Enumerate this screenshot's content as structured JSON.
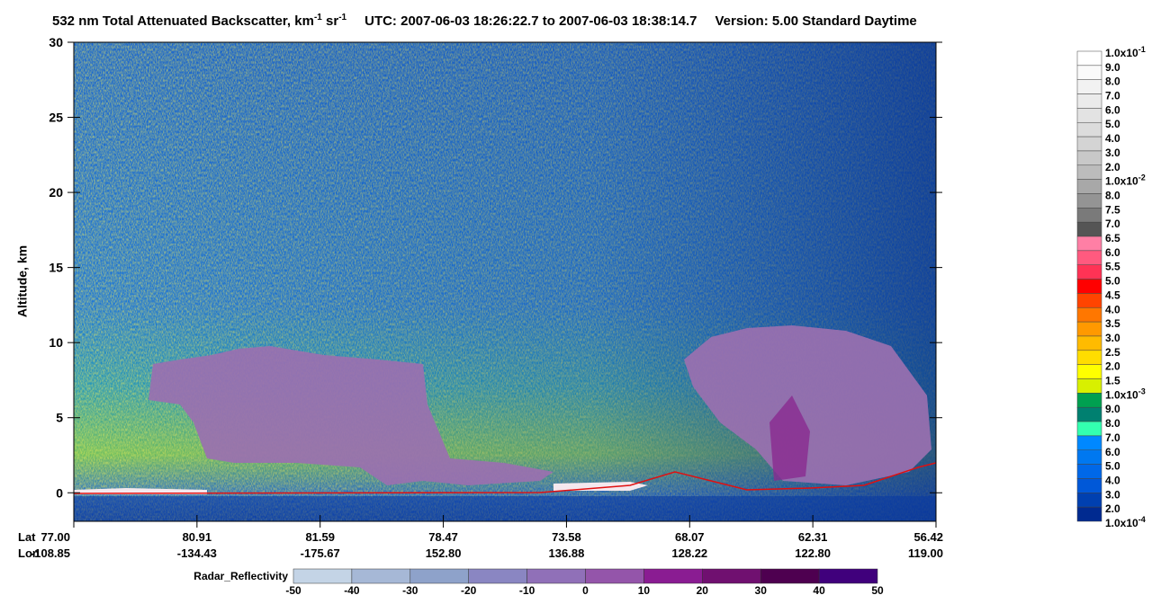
{
  "chart_data": {
    "type": "curtain",
    "title_parts": [
      "532 nm Total Attenuated Backscatter, km",
      "-1",
      " sr",
      "-1"
    ],
    "time_range": "UTC:  2007-06-03 18:26:22.7  to  2007-06-03 18:38:14.7",
    "version": "Version: 5.00  Standard  Daytime",
    "ylabel": "Altitude, km",
    "ylim": [
      -1.9,
      30
    ],
    "yticks": [
      0,
      5,
      10,
      15,
      20,
      25,
      30
    ],
    "x_row_labels": [
      "Lat",
      "Lon"
    ],
    "lat": [
      "77.00",
      "80.91",
      "81.59",
      "78.47",
      "73.58",
      "68.07",
      "62.31",
      "56.42"
    ],
    "lon": [
      "-108.85",
      "-134.43",
      "-175.67",
      "152.80",
      "136.88",
      "128.22",
      "122.80",
      "119.00"
    ],
    "colorbar_labels": [
      {
        "text": "1.0x10",
        "sup": "-1"
      },
      "9.0",
      "8.0",
      "7.0",
      "6.0",
      "5.0",
      "4.0",
      "3.0",
      "2.0",
      {
        "text": "1.0x10",
        "sup": "-2"
      },
      "8.0",
      "7.5",
      "7.0",
      "6.5",
      "6.0",
      "5.5",
      "5.0",
      "4.5",
      "4.0",
      "3.5",
      "3.0",
      "2.5",
      "2.0",
      "1.5",
      {
        "text": "1.0x10",
        "sup": "-3"
      },
      "9.0",
      "8.0",
      "7.0",
      "6.0",
      "5.0",
      "4.0",
      "3.0",
      "2.0",
      {
        "text": "1.0x10",
        "sup": "-4"
      }
    ],
    "colorbar_colors": [
      "#ffffff",
      "#fafafa",
      "#f2f2f2",
      "#ebebeb",
      "#e3e3e3",
      "#dcdcdc",
      "#d4d4d4",
      "#c8c8c8",
      "#bcbcbc",
      "#a8a8a8",
      "#949494",
      "#7a7a7a",
      "#555555",
      "#ff7fa5",
      "#ff5a7f",
      "#ff3355",
      "#ff0000",
      "#ff4400",
      "#ff7700",
      "#ff9900",
      "#ffbb00",
      "#ffdd00",
      "#ffff00",
      "#d8f000",
      "#00a050",
      "#008070",
      "#33ffb0",
      "#0088ff",
      "#0078f0",
      "#0068e8",
      "#0058d8",
      "#0040b0",
      "#002a90"
    ],
    "radar_label": "Radar_Reflectivity",
    "radar_ticks": [
      -50,
      -40,
      -30,
      -20,
      -10,
      0,
      10,
      20,
      30,
      40,
      50
    ],
    "radar_colors": [
      "#c4d4e6",
      "#a6b8d6",
      "#8ea2ca",
      "#8a86c2",
      "#9070b8",
      "#9455aa",
      "#8a1c92",
      "#701070",
      "#4e0050",
      "#40007c"
    ]
  }
}
